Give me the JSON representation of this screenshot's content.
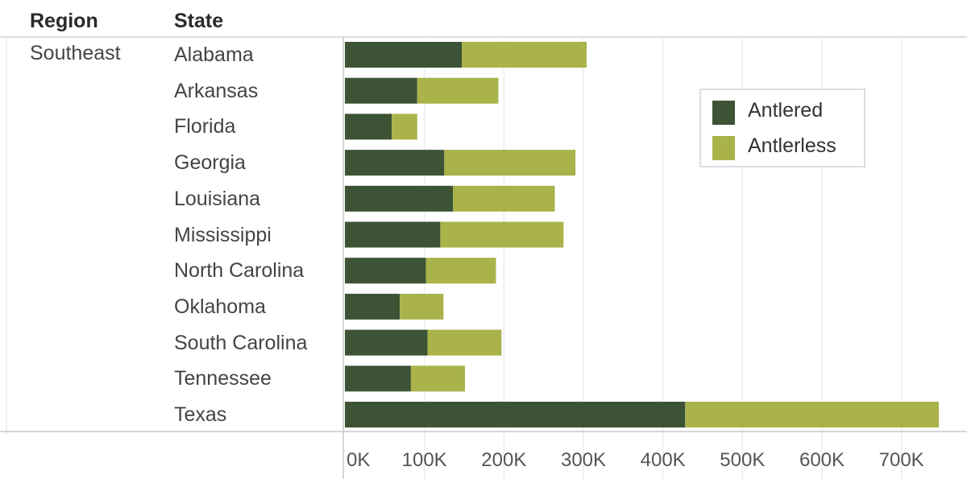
{
  "headers": {
    "region": "Region",
    "state": "State"
  },
  "region": "Southeast",
  "chart_data": {
    "type": "bar",
    "orientation": "horizontal",
    "stacked": true,
    "categories": [
      "Alabama",
      "Arkansas",
      "Florida",
      "Georgia",
      "Louisiana",
      "Mississippi",
      "North Carolina",
      "Oklahoma",
      "South Carolina",
      "Tennessee",
      "Texas"
    ],
    "series": [
      {
        "name": "Antlered",
        "color": "#3d5336",
        "values": [
          147000,
          91000,
          59000,
          125000,
          136000,
          120000,
          102000,
          69000,
          104000,
          83000,
          428000
        ]
      },
      {
        "name": "Antlerless",
        "color": "#a9b34a",
        "values": [
          157000,
          102000,
          32000,
          165000,
          128000,
          155000,
          88000,
          55000,
          93000,
          68000,
          319000
        ]
      }
    ],
    "xlim": [
      0,
      750000
    ],
    "ticks": [
      0,
      100000,
      200000,
      300000,
      400000,
      500000,
      600000,
      700000
    ],
    "tick_labels": [
      "0K",
      "100K",
      "200K",
      "300K",
      "400K",
      "500K",
      "600K",
      "700K"
    ],
    "xlabel": "",
    "ylabel": "",
    "grid": true,
    "legend_position": "top-right"
  }
}
